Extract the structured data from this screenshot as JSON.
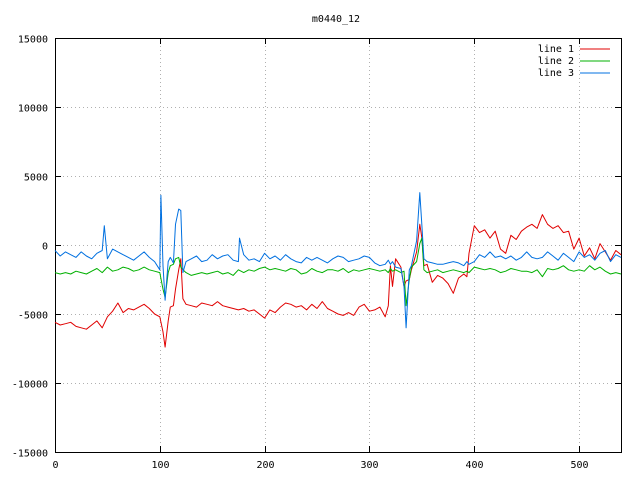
{
  "chart_data": {
    "type": "line",
    "title": "m0440_12",
    "xlabel": "",
    "ylabel": "",
    "xlim": [
      0,
      540
    ],
    "ylim": [
      -15000,
      15000
    ],
    "xticks": [
      0,
      100,
      200,
      300,
      400,
      500
    ],
    "yticks": [
      -15000,
      -10000,
      -5000,
      0,
      5000,
      10000,
      15000
    ],
    "grid": true,
    "legend_position": "top-right",
    "series": [
      {
        "name": "line 1",
        "color": "#e00000",
        "x": [
          0,
          5,
          10,
          15,
          20,
          25,
          30,
          35,
          40,
          45,
          50,
          55,
          60,
          65,
          70,
          75,
          80,
          85,
          90,
          95,
          100,
          103,
          105,
          108,
          110,
          113,
          115,
          118,
          120,
          122,
          125,
          130,
          135,
          140,
          145,
          150,
          155,
          160,
          165,
          170,
          175,
          180,
          185,
          190,
          195,
          200,
          205,
          210,
          215,
          220,
          225,
          230,
          235,
          240,
          245,
          250,
          255,
          260,
          265,
          270,
          275,
          280,
          285,
          290,
          295,
          300,
          305,
          310,
          315,
          318,
          320,
          322,
          325,
          330,
          333,
          335,
          338,
          340,
          345,
          348,
          350,
          352,
          355,
          360,
          365,
          370,
          375,
          380,
          385,
          390,
          393,
          395,
          400,
          405,
          410,
          415,
          420,
          425,
          430,
          435,
          440,
          445,
          450,
          455,
          460,
          465,
          470,
          475,
          480,
          485,
          490,
          495,
          500,
          505,
          510,
          515,
          520,
          525,
          530,
          535,
          540
        ],
        "values": [
          -5600,
          -5800,
          -5700,
          -5600,
          -5900,
          -6000,
          -6100,
          -5800,
          -5500,
          -6000,
          -5200,
          -4800,
          -4200,
          -4900,
          -4600,
          -4700,
          -4500,
          -4300,
          -4600,
          -5000,
          -5200,
          -6300,
          -7400,
          -5500,
          -4500,
          -4400,
          -3200,
          -1800,
          -1000,
          -3900,
          -4300,
          -4400,
          -4500,
          -4200,
          -4300,
          -4400,
          -4100,
          -4400,
          -4500,
          -4600,
          -4700,
          -4600,
          -4800,
          -4700,
          -5000,
          -5300,
          -4700,
          -4900,
          -4500,
          -4200,
          -4300,
          -4500,
          -4400,
          -4700,
          -4300,
          -4600,
          -4100,
          -4600,
          -4800,
          -5000,
          -5100,
          -4900,
          -5100,
          -4500,
          -4300,
          -4800,
          -4700,
          -4500,
          -5200,
          -4400,
          -1500,
          -3000,
          -1000,
          -1600,
          -3000,
          -2600,
          -2500,
          -1800,
          -500,
          1500,
          500,
          -1500,
          -1400,
          -2700,
          -2200,
          -2400,
          -2800,
          -3500,
          -2400,
          -2100,
          -2300,
          -600,
          1400,
          900,
          1100,
          500,
          1000,
          -300,
          -600,
          700,
          400,
          1000,
          1300,
          1500,
          1200,
          2200,
          1500,
          1200,
          1400,
          900,
          1000,
          -300,
          500,
          -800,
          -200,
          -1000,
          100,
          -500,
          -1100,
          -400,
          -700
        ]
      },
      {
        "name": "line 2",
        "color": "#00b000",
        "x": [
          0,
          5,
          10,
          15,
          20,
          25,
          30,
          35,
          40,
          45,
          50,
          55,
          60,
          65,
          70,
          75,
          80,
          85,
          90,
          95,
          100,
          103,
          105,
          108,
          110,
          113,
          115,
          118,
          120,
          122,
          125,
          130,
          135,
          140,
          145,
          150,
          155,
          160,
          165,
          170,
          175,
          180,
          185,
          190,
          195,
          200,
          205,
          210,
          215,
          220,
          225,
          230,
          235,
          240,
          245,
          250,
          255,
          260,
          265,
          270,
          275,
          280,
          285,
          290,
          295,
          300,
          305,
          310,
          315,
          318,
          320,
          322,
          325,
          330,
          333,
          335,
          338,
          340,
          345,
          348,
          350,
          352,
          355,
          360,
          365,
          370,
          375,
          380,
          385,
          390,
          393,
          395,
          400,
          405,
          410,
          415,
          420,
          425,
          430,
          435,
          440,
          445,
          450,
          455,
          460,
          465,
          470,
          475,
          480,
          485,
          490,
          495,
          500,
          505,
          510,
          515,
          520,
          525,
          530,
          535,
          540
        ],
        "values": [
          -2000,
          -2100,
          -2000,
          -2100,
          -1900,
          -2000,
          -2100,
          -1900,
          -1700,
          -2000,
          -1600,
          -1900,
          -1800,
          -1600,
          -1700,
          -1900,
          -1800,
          -1600,
          -1800,
          -1900,
          -2000,
          -3200,
          -3800,
          -2000,
          -1500,
          -1400,
          -1000,
          -900,
          -1600,
          -1800,
          -2000,
          -2200,
          -2100,
          -2000,
          -2100,
          -2000,
          -1900,
          -2100,
          -2000,
          -2200,
          -1800,
          -2000,
          -1800,
          -1900,
          -1700,
          -1600,
          -1800,
          -1700,
          -1800,
          -1900,
          -1700,
          -1800,
          -2100,
          -2000,
          -1700,
          -1900,
          -2000,
          -1800,
          -1800,
          -1900,
          -1700,
          -2000,
          -1800,
          -1900,
          -1800,
          -1700,
          -1800,
          -1900,
          -1800,
          -2000,
          -1700,
          -1900,
          -1800,
          -2000,
          -1900,
          -4400,
          -2500,
          -1600,
          -1200,
          100,
          500,
          -1800,
          -2000,
          -1900,
          -1800,
          -2000,
          -1900,
          -1800,
          -1900,
          -2000,
          -1900,
          -2000,
          -1600,
          -1700,
          -1800,
          -1700,
          -1800,
          -2000,
          -1900,
          -1700,
          -1800,
          -1900,
          -1900,
          -2000,
          -1800,
          -2300,
          -1700,
          -1800,
          -1700,
          -1500,
          -1800,
          -1900,
          -1800,
          -1900,
          -1500,
          -1800,
          -1600,
          -1900,
          -2100,
          -2000,
          -2100
        ]
      },
      {
        "name": "line 3",
        "color": "#0070e0",
        "x": [
          0,
          5,
          10,
          15,
          20,
          25,
          30,
          35,
          40,
          45,
          47,
          50,
          55,
          60,
          65,
          70,
          75,
          80,
          85,
          90,
          95,
          100,
          101,
          103,
          105,
          108,
          110,
          113,
          115,
          118,
          120,
          122,
          125,
          130,
          135,
          140,
          145,
          150,
          155,
          160,
          165,
          170,
          175,
          176,
          180,
          185,
          190,
          195,
          200,
          205,
          210,
          215,
          220,
          225,
          230,
          235,
          240,
          245,
          250,
          255,
          260,
          265,
          270,
          275,
          280,
          285,
          290,
          295,
          300,
          305,
          310,
          315,
          318,
          320,
          322,
          325,
          330,
          333,
          335,
          338,
          340,
          345,
          348,
          350,
          352,
          355,
          360,
          365,
          370,
          375,
          380,
          385,
          390,
          393,
          395,
          400,
          405,
          410,
          415,
          420,
          425,
          430,
          435,
          440,
          445,
          450,
          455,
          460,
          465,
          470,
          475,
          480,
          485,
          490,
          495,
          500,
          505,
          510,
          515,
          520,
          525,
          530,
          535,
          540
        ],
        "values": [
          -400,
          -800,
          -500,
          -700,
          -900,
          -500,
          -800,
          -1000,
          -600,
          -400,
          1400,
          -1000,
          -300,
          -500,
          -700,
          -900,
          -1100,
          -800,
          -500,
          -900,
          -1200,
          -1800,
          3600,
          -1500,
          -4000,
          -1200,
          -900,
          -1300,
          1500,
          2600,
          2500,
          -2000,
          -1200,
          -1000,
          -800,
          -1200,
          -1100,
          -700,
          -1000,
          -800,
          -700,
          -1100,
          -1200,
          500,
          -700,
          -1100,
          -1000,
          -1200,
          -600,
          -1000,
          -800,
          -1100,
          -700,
          -1000,
          -1200,
          -1300,
          -900,
          -1100,
          -900,
          -1100,
          -1300,
          -1000,
          -800,
          -900,
          -1200,
          -1100,
          -1000,
          -800,
          -900,
          -1300,
          -1500,
          -1400,
          -1100,
          -1400,
          -1200,
          -1600,
          -1700,
          -3000,
          -6000,
          -1800,
          -1500,
          300,
          3800,
          1400,
          -1000,
          -1200,
          -1300,
          -1400,
          -1400,
          -1300,
          -1200,
          -1300,
          -1500,
          -1200,
          -1400,
          -1200,
          -700,
          -900,
          -500,
          -900,
          -800,
          -1000,
          -800,
          -1100,
          -900,
          -500,
          -900,
          -1000,
          -900,
          -500,
          -800,
          -1100,
          -600,
          -900,
          -1200,
          -500,
          -900,
          -700,
          -1100,
          -600,
          -400,
          -1200,
          -700,
          -900
        ]
      }
    ]
  }
}
